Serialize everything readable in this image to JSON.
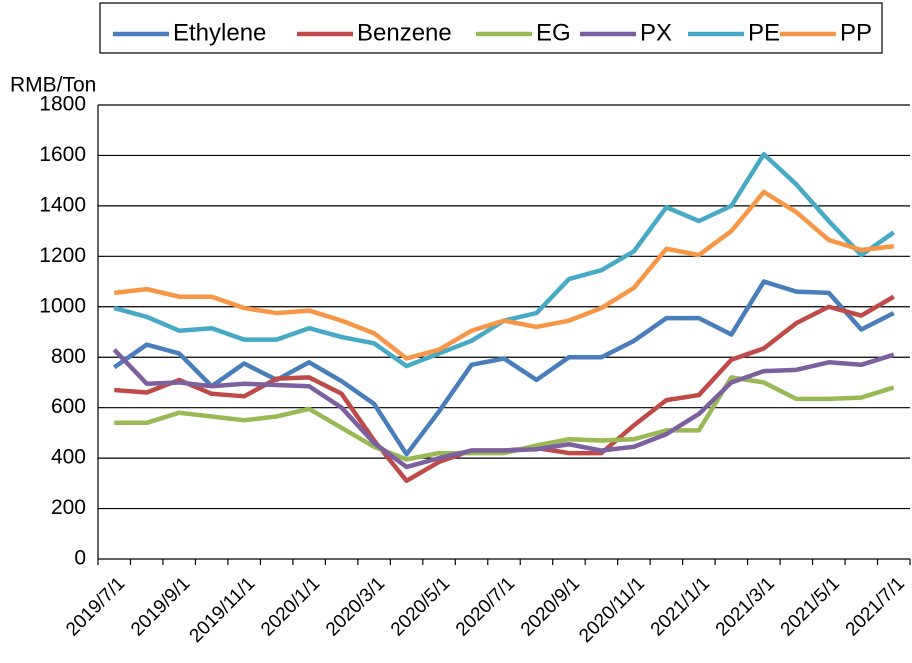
{
  "chart_data": {
    "type": "line",
    "y_label": "RMB/Ton",
    "categories": [
      "2019/7/1",
      null,
      "2019/9/1",
      null,
      "2019/11/1",
      null,
      "2020/1/1",
      null,
      "2020/3/1",
      null,
      "2020/5/1",
      null,
      "2020/7/1",
      null,
      "2020/9/1",
      null,
      "2020/11/1",
      null,
      "2021/1/1",
      null,
      "2021/3/1",
      null,
      "2021/5/1",
      null,
      "2021/7/1"
    ],
    "series": [
      {
        "name": "Ethylene",
        "color": "#4a7ebb",
        "values": [
          760,
          850,
          815,
          685,
          775,
          710,
          780,
          705,
          615,
          415,
          585,
          770,
          795,
          710,
          800,
          800,
          865,
          955,
          955,
          890,
          1100,
          1060,
          1055,
          910,
          975
        ]
      },
      {
        "name": "Benzene",
        "color": "#be4b48",
        "values": [
          670,
          660,
          710,
          655,
          645,
          715,
          720,
          655,
          470,
          310,
          385,
          430,
          430,
          440,
          420,
          420,
          530,
          630,
          650,
          790,
          835,
          935,
          1000,
          965,
          1040
        ]
      },
      {
        "name": "EG",
        "color": "#98b954",
        "values": [
          540,
          540,
          580,
          565,
          550,
          565,
          595,
          520,
          445,
          395,
          420,
          420,
          420,
          450,
          475,
          470,
          475,
          510,
          510,
          720,
          700,
          635,
          635,
          640,
          680
        ]
      },
      {
        "name": "PX",
        "color": "#7d60a0",
        "values": [
          830,
          695,
          700,
          685,
          695,
          690,
          685,
          600,
          460,
          365,
          400,
          430,
          430,
          435,
          455,
          430,
          445,
          495,
          575,
          700,
          745,
          750,
          780,
          770,
          810
        ]
      },
      {
        "name": "PE",
        "color": "#46aac5",
        "values": [
          995,
          960,
          905,
          915,
          870,
          870,
          915,
          880,
          855,
          765,
          815,
          865,
          945,
          975,
          1110,
          1145,
          1220,
          1395,
          1340,
          1400,
          1605,
          1485,
          1340,
          1205,
          1295
        ]
      },
      {
        "name": "PP",
        "color": "#f79646",
        "values": [
          1055,
          1070,
          1040,
          1040,
          995,
          975,
          985,
          945,
          895,
          795,
          830,
          905,
          945,
          920,
          945,
          995,
          1075,
          1230,
          1205,
          1300,
          1455,
          1375,
          1265,
          1225,
          1240
        ]
      }
    ],
    "ylim": [
      0,
      1800
    ],
    "yticks": [
      0,
      200,
      400,
      600,
      800,
      1000,
      1200,
      1400,
      1600,
      1800
    ],
    "grid": true,
    "legend": "top"
  }
}
